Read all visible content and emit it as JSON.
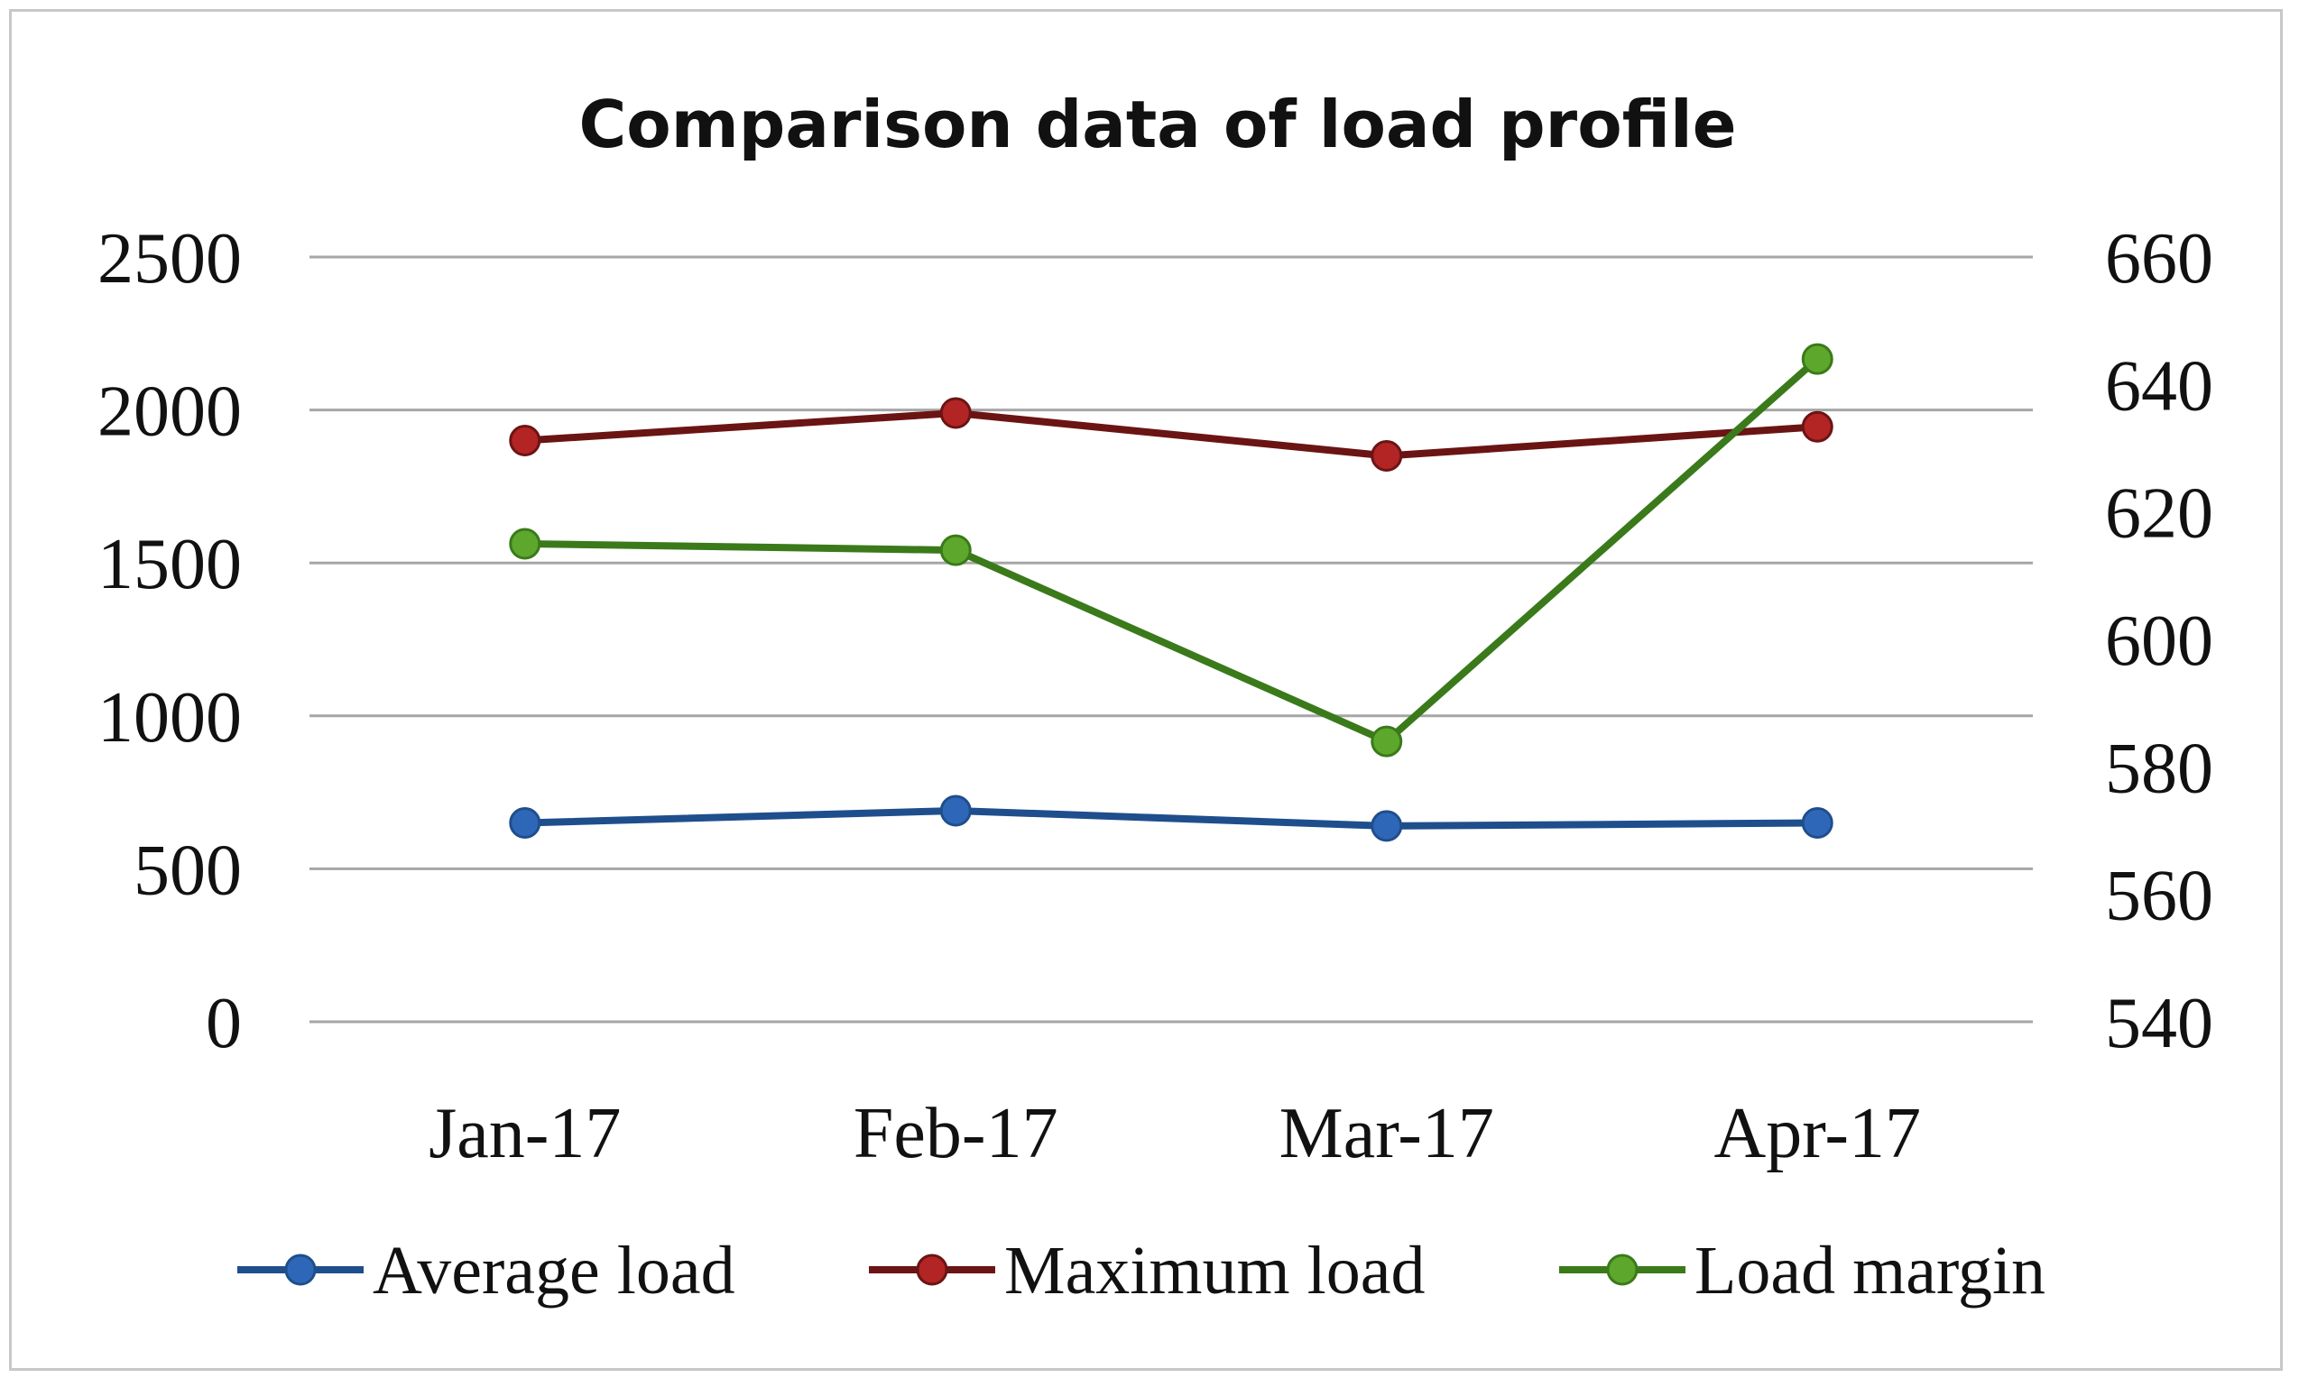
{
  "chart_data": {
    "type": "line",
    "title": "Comparison data of load profile",
    "categories": [
      "Jan-17",
      "Feb-17",
      "Mar-17",
      "Apr-17"
    ],
    "y_left": {
      "range": [
        0,
        2500
      ],
      "ticks": [
        "0",
        "500",
        "1000",
        "1500",
        "2000",
        "2500"
      ]
    },
    "y_right": {
      "range": [
        540,
        660
      ],
      "ticks": [
        "540",
        "560",
        "580",
        "600",
        "620",
        "640",
        "660"
      ]
    },
    "series": [
      {
        "name": "Average load",
        "axis": "left",
        "values": [
          650,
          690,
          640,
          650
        ],
        "color": "#1f4e8c",
        "marker": "#2f67b8"
      },
      {
        "name": "Maximum load",
        "axis": "left",
        "values": [
          1900,
          1990,
          1850,
          1945
        ],
        "color": "#6b1414",
        "marker": "#b32424"
      },
      {
        "name": "Load margin",
        "axis": "right",
        "values": [
          615,
          614,
          584,
          644
        ],
        "color": "#3a7a1a",
        "marker": "#5da82c"
      }
    ],
    "grid": true,
    "legend_position": "bottom"
  }
}
